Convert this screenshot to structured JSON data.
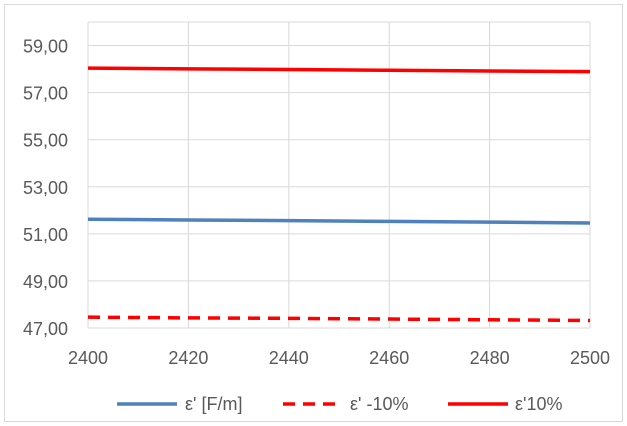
{
  "chart_data": {
    "type": "line",
    "x": [
      2400,
      2420,
      2440,
      2460,
      2480,
      2500
    ],
    "xlim": [
      2400,
      2500
    ],
    "ylim": [
      47,
      60
    ],
    "x_ticks": [
      "2400",
      "2420",
      "2440",
      "2460",
      "2480",
      "2500"
    ],
    "y_ticks": [
      "47,00",
      "49,00",
      "51,00",
      "53,00",
      "55,00",
      "57,00",
      "59,00"
    ],
    "y_tick_values": [
      47,
      49,
      51,
      53,
      55,
      57,
      59
    ],
    "grid": "vertical and horizontal",
    "legend_position": "bottom",
    "series": [
      {
        "name": "ε' [F/m]",
        "color": "#4f81bd",
        "dash": "solid",
        "values": [
          51.62,
          51.59,
          51.56,
          51.53,
          51.5,
          51.46
        ]
      },
      {
        "name": "ε' -10%",
        "color": "#ff0000",
        "dash": "dashed",
        "values": [
          47.46,
          47.43,
          47.41,
          47.38,
          47.35,
          47.32
        ]
      },
      {
        "name": "ε'10%",
        "color": "#ff0000",
        "dash": "solid",
        "values": [
          58.04,
          58.01,
          57.98,
          57.95,
          57.92,
          57.89
        ]
      }
    ]
  }
}
